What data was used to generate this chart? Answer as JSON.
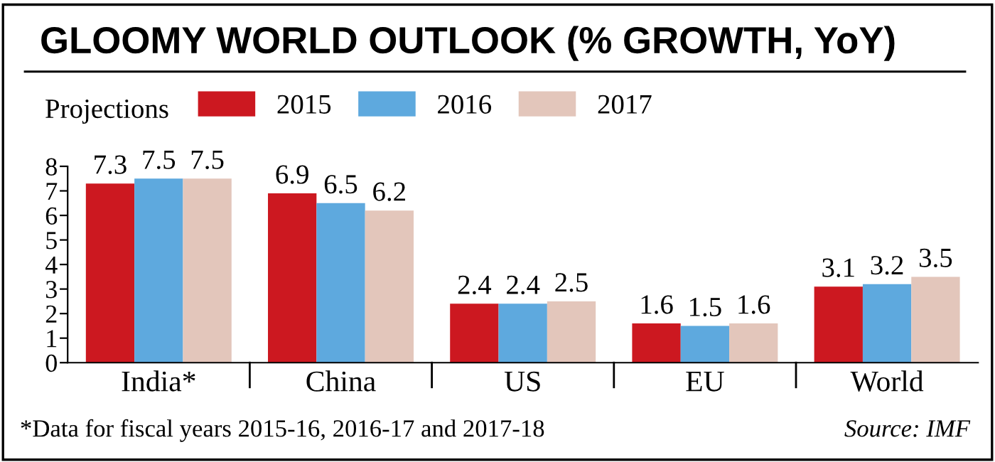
{
  "chart_data": {
    "type": "bar",
    "title": "GLOOMY WORLD OUTLOOK (% GROWTH, YoY)",
    "legend_title": "Projections",
    "categories": [
      "India*",
      "China",
      "US",
      "EU",
      "World"
    ],
    "series": [
      {
        "name": "2015",
        "color": "#cc1820",
        "values": [
          7.3,
          6.9,
          2.4,
          1.6,
          3.1
        ]
      },
      {
        "name": "2016",
        "color": "#5ea9de",
        "values": [
          7.5,
          6.5,
          2.4,
          1.5,
          3.2
        ]
      },
      {
        "name": "2017",
        "color": "#e3c6bb",
        "values": [
          7.5,
          6.2,
          2.5,
          1.6,
          3.5
        ]
      }
    ],
    "ylim": [
      0,
      8
    ],
    "yticks": [
      0,
      1,
      2,
      3,
      4,
      5,
      6,
      7,
      8
    ],
    "data_labels": true,
    "grid": false,
    "legend": "top left",
    "annotations": [
      "*Data for fiscal years 2015-16, 2016-17 and 2017-18",
      "Source: IMF"
    ]
  }
}
